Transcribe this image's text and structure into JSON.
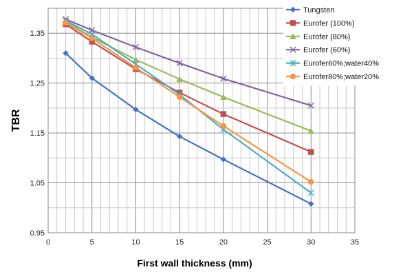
{
  "chart_data": {
    "type": "line",
    "title": "",
    "xlabel": "First wall thickness (mm)",
    "ylabel": "TBR",
    "xlim": [
      0,
      35
    ],
    "ylim": [
      0.95,
      1.4
    ],
    "x_ticks": [
      0,
      5,
      10,
      15,
      20,
      25,
      30,
      35
    ],
    "y_ticks": [
      0.95,
      1.05,
      1.15,
      1.25,
      1.35
    ],
    "x_tick_labels": [
      "0",
      "5",
      "10",
      "15",
      "20",
      "25",
      "30",
      "35"
    ],
    "y_tick_labels": [
      "0.95",
      "1.05",
      "1.15",
      "1.25",
      "1.35"
    ],
    "grid": true,
    "legend_position": "right",
    "x": [
      2,
      5,
      10,
      15,
      20,
      30
    ],
    "series": [
      {
        "name": "Tungsten",
        "color": "#4472c4",
        "marker": "diamond",
        "values": [
          1.31,
          1.26,
          1.197,
          1.143,
          1.097,
          1.008
        ]
      },
      {
        "name": "Eurofer (100%)",
        "color": "#c0504d",
        "marker": "square",
        "values": [
          1.368,
          1.333,
          1.278,
          1.231,
          1.188,
          1.112
        ]
      },
      {
        "name": "Eurofer (80%)",
        "color": "#9bbb59",
        "marker": "triangle",
        "values": [
          1.373,
          1.342,
          1.297,
          1.258,
          1.222,
          1.154
        ]
      },
      {
        "name": "Eurofer (60%)",
        "color": "#8064a2",
        "marker": "x",
        "values": [
          1.378,
          1.356,
          1.322,
          1.29,
          1.259,
          1.205
        ]
      },
      {
        "name": "Eurofer60%;water40%",
        "color": "#4bacc6",
        "marker": "star",
        "values": [
          1.375,
          1.348,
          1.288,
          1.227,
          1.157,
          1.03
        ]
      },
      {
        "name": "Eurofer80%;water20%",
        "color": "#f79646",
        "marker": "circle",
        "values": [
          1.371,
          1.34,
          1.281,
          1.222,
          1.164,
          1.052
        ]
      }
    ]
  }
}
